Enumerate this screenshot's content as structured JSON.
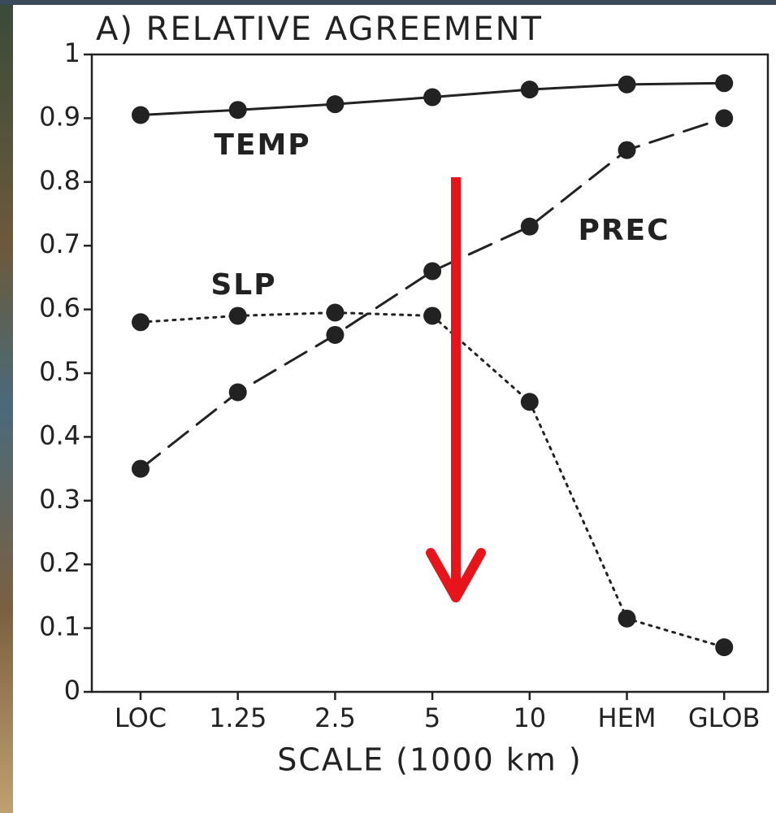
{
  "chart_data": {
    "type": "line",
    "title": "A) RELATIVE AGREEMENT",
    "x_label": "SCALE (1000 km )",
    "categories": [
      "LOC",
      "1.25",
      "2.5",
      "5",
      "10",
      "HEM",
      "GLOB"
    ],
    "series": [
      {
        "name": "TEMP",
        "color": "#222222",
        "linestyle": "solid",
        "values": [
          0.905,
          0.913,
          0.922,
          0.933,
          0.945,
          0.953,
          0.955
        ]
      },
      {
        "name": "PREC",
        "color": "#222222",
        "linestyle": "dashed",
        "values": [
          0.35,
          0.47,
          0.56,
          0.66,
          0.73,
          0.85,
          0.9
        ]
      },
      {
        "name": "SLP",
        "color": "#222222",
        "linestyle": "dotted",
        "values": [
          0.58,
          0.59,
          0.595,
          0.59,
          0.455,
          0.115,
          0.07
        ]
      }
    ],
    "ylim": [
      0,
      1
    ],
    "yticks": [
      0,
      0.1,
      0.2,
      0.3,
      0.4,
      0.5,
      0.6,
      0.7,
      0.8,
      0.9,
      1
    ],
    "grid": false
  }
}
